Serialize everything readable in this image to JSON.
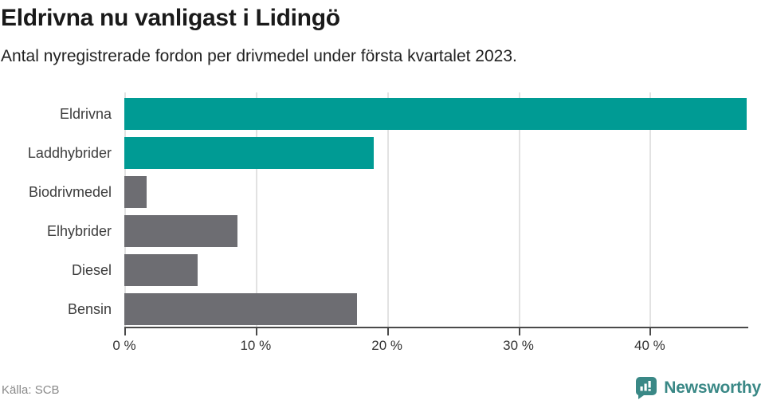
{
  "header": {
    "title": "Eldrivna nu vanligast i Lidingö",
    "subtitle": "Antal nyregistrerade fordon per drivmedel under första kvartalet 2023."
  },
  "footer": {
    "source": "Källa: SCB",
    "brand": "Newsworthy"
  },
  "colors": {
    "accent_teal": "#009b94",
    "muted_gray": "#6d6d72",
    "brand_teal": "#3a8886",
    "axis": "#4a4a4a",
    "grid": "#e2e2e2"
  },
  "chart_data": {
    "type": "bar",
    "orientation": "horizontal",
    "title": "Eldrivna nu vanligast i Lidingö",
    "subtitle": "Antal nyregistrerade fordon per drivmedel under första kvartalet 2023.",
    "categories": [
      "Eldrivna",
      "Laddhybrider",
      "Biodrivmedel",
      "Elhybrider",
      "Diesel",
      "Bensin"
    ],
    "values": [
      47.4,
      19.0,
      1.7,
      8.6,
      5.6,
      17.7
    ],
    "unit": "%",
    "bar_colors": [
      "#009b94",
      "#009b94",
      "#6d6d72",
      "#6d6d72",
      "#6d6d72",
      "#6d6d72"
    ],
    "xlim": [
      0,
      47.5
    ],
    "xticks": [
      0,
      10,
      20,
      30,
      40
    ],
    "xtick_labels": [
      "0 %",
      "10 %",
      "20 %",
      "30 %",
      "40 %"
    ],
    "xlabel": "",
    "ylabel": "",
    "grid": "vertical-gridlines",
    "legend": "none",
    "source": "SCB"
  }
}
